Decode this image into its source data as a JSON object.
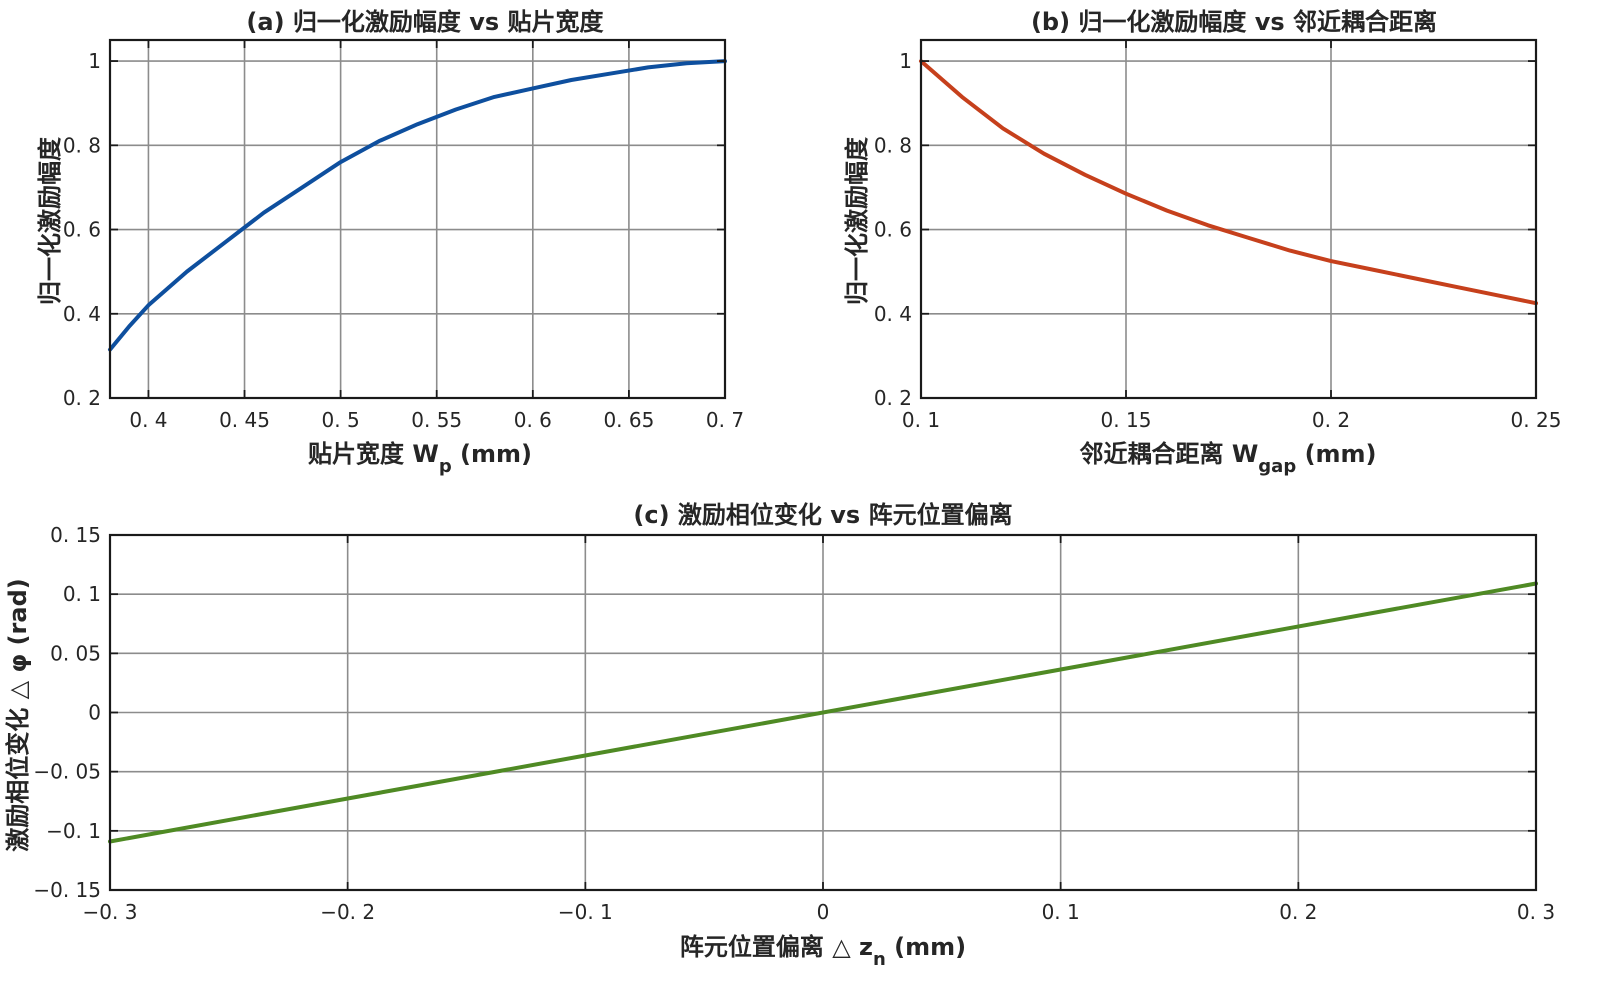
{
  "colors": {
    "panel_a_line": "#0e4f9e",
    "panel_b_line": "#c6401c",
    "panel_c_line": "#4f8a24",
    "grid": "#8c8c8c",
    "axes": "#1a1a1a"
  },
  "chart_data": [
    {
      "type": "line",
      "title": "(a) 归一化激励幅度 vs 贴片宽度",
      "xlabel": "贴片宽度 W",
      "xlabel_sub": "p",
      "xlabel_unit": " (mm)",
      "ylabel": "归一化激励幅度",
      "xlim": [
        0.38,
        0.7
      ],
      "ylim": [
        0.2,
        1.05
      ],
      "xticks": [
        0.4,
        0.45,
        0.5,
        0.55,
        0.6,
        0.65,
        0.7
      ],
      "xtick_labels": [
        "0. 4",
        "0. 45",
        "0. 5",
        "0. 55",
        "0. 6",
        "0. 65",
        "0. 7"
      ],
      "yticks": [
        0.2,
        0.4,
        0.6,
        0.8,
        1.0
      ],
      "ytick_labels": [
        "0. 2",
        "0. 4",
        "0. 6",
        "0. 8",
        "1"
      ],
      "grid": true,
      "x": [
        0.38,
        0.39,
        0.4,
        0.42,
        0.44,
        0.46,
        0.48,
        0.5,
        0.52,
        0.54,
        0.56,
        0.58,
        0.6,
        0.62,
        0.64,
        0.66,
        0.68,
        0.7
      ],
      "y": [
        0.315,
        0.37,
        0.42,
        0.5,
        0.57,
        0.64,
        0.7,
        0.76,
        0.81,
        0.85,
        0.885,
        0.915,
        0.935,
        0.955,
        0.97,
        0.985,
        0.995,
        1.0
      ]
    },
    {
      "type": "line",
      "title": "(b) 归一化激励幅度 vs 邻近耦合距离",
      "xlabel": "邻近耦合距离 W",
      "xlabel_sub": "gap",
      "xlabel_unit": " (mm)",
      "ylabel": "归一化激励幅度",
      "xlim": [
        0.1,
        0.25
      ],
      "ylim": [
        0.2,
        1.05
      ],
      "xticks": [
        0.1,
        0.15,
        0.2,
        0.25
      ],
      "xtick_labels": [
        "0. 1",
        "0. 15",
        "0. 2",
        "0. 25"
      ],
      "yticks": [
        0.2,
        0.4,
        0.6,
        0.8,
        1.0
      ],
      "ytick_labels": [
        "0. 2",
        "0. 4",
        "0. 6",
        "0. 8",
        "1"
      ],
      "grid": true,
      "x": [
        0.1,
        0.11,
        0.12,
        0.13,
        0.14,
        0.15,
        0.16,
        0.17,
        0.18,
        0.19,
        0.2,
        0.21,
        0.22,
        0.23,
        0.24,
        0.25
      ],
      "y": [
        1.0,
        0.915,
        0.84,
        0.78,
        0.73,
        0.685,
        0.645,
        0.61,
        0.58,
        0.55,
        0.525,
        0.505,
        0.485,
        0.465,
        0.445,
        0.425
      ]
    },
    {
      "type": "line",
      "title": "(c) 激励相位变化 vs 阵元位置偏离",
      "xlabel": "阵元位置偏离 △ z",
      "xlabel_sub": "n",
      "xlabel_unit": " (mm)",
      "ylabel": "激励相位变化 △ φ (rad)",
      "xlim": [
        -0.3,
        0.3
      ],
      "ylim": [
        -0.15,
        0.15
      ],
      "xticks": [
        -0.3,
        -0.2,
        -0.1,
        0,
        0.1,
        0.2,
        0.3
      ],
      "xtick_labels": [
        "−0. 3",
        "−0. 2",
        "−0. 1",
        "0",
        "0. 1",
        "0. 2",
        "0. 3"
      ],
      "yticks": [
        -0.15,
        -0.1,
        -0.05,
        0,
        0.05,
        0.1,
        0.15
      ],
      "ytick_labels": [
        "−0. 15",
        "−0. 1",
        "−0. 05",
        "0",
        "0. 05",
        "0. 1",
        "0. 15"
      ],
      "grid": true,
      "x": [
        -0.3,
        0.3
      ],
      "y": [
        -0.109,
        0.109
      ]
    }
  ]
}
